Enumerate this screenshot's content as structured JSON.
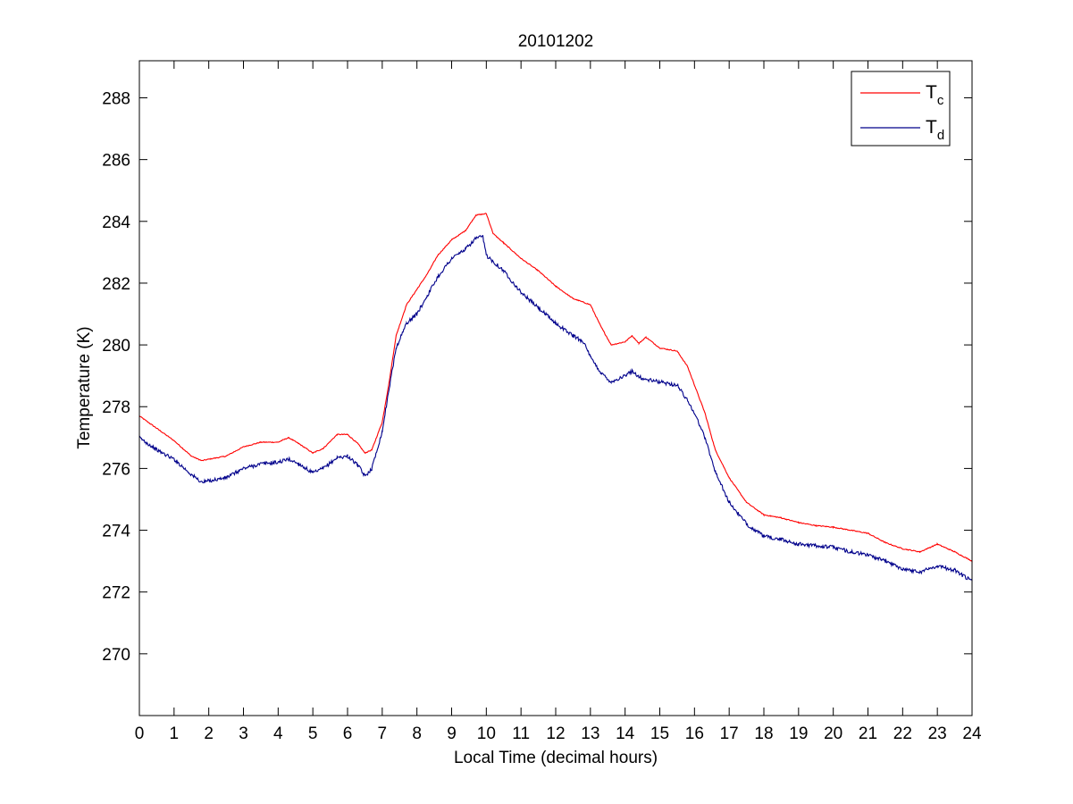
{
  "chart_data": {
    "type": "line",
    "title": "20101202",
    "xlabel": "Local Time (decimal hours)",
    "ylabel": "Temperature (K)",
    "xlim": [
      0,
      24
    ],
    "ylim": [
      268,
      289.2
    ],
    "xticks": [
      0,
      1,
      2,
      3,
      4,
      5,
      6,
      7,
      8,
      9,
      10,
      11,
      12,
      13,
      14,
      15,
      16,
      17,
      18,
      19,
      20,
      21,
      22,
      23,
      24
    ],
    "yticks": [
      270,
      272,
      274,
      276,
      278,
      280,
      282,
      284,
      286,
      288
    ],
    "grid": false,
    "legend_position": "top-right",
    "series": [
      {
        "name": "T",
        "name_subscript": "c",
        "color": "#ff0000",
        "points": [
          [
            0,
            277.7
          ],
          [
            0.5,
            277.3
          ],
          [
            1,
            276.9
          ],
          [
            1.5,
            276.4
          ],
          [
            1.8,
            276.25
          ],
          [
            2,
            276.3
          ],
          [
            2.5,
            276.4
          ],
          [
            3,
            276.7
          ],
          [
            3.5,
            276.85
          ],
          [
            4,
            276.85
          ],
          [
            4.3,
            277.0
          ],
          [
            4.6,
            276.8
          ],
          [
            5,
            276.5
          ],
          [
            5.3,
            276.65
          ],
          [
            5.7,
            277.1
          ],
          [
            6,
            277.1
          ],
          [
            6.3,
            276.8
          ],
          [
            6.5,
            276.5
          ],
          [
            6.7,
            276.6
          ],
          [
            7,
            277.5
          ],
          [
            7.2,
            278.8
          ],
          [
            7.4,
            280.3
          ],
          [
            7.7,
            281.3
          ],
          [
            8,
            281.8
          ],
          [
            8.3,
            282.3
          ],
          [
            8.6,
            282.9
          ],
          [
            9,
            283.4
          ],
          [
            9.4,
            283.7
          ],
          [
            9.7,
            284.2
          ],
          [
            10,
            284.25
          ],
          [
            10.2,
            283.6
          ],
          [
            10.5,
            283.3
          ],
          [
            11,
            282.8
          ],
          [
            11.5,
            282.4
          ],
          [
            12,
            281.9
          ],
          [
            12.5,
            281.5
          ],
          [
            13,
            281.3
          ],
          [
            13.3,
            280.6
          ],
          [
            13.6,
            280.0
          ],
          [
            14,
            280.1
          ],
          [
            14.2,
            280.3
          ],
          [
            14.4,
            280.05
          ],
          [
            14.6,
            280.25
          ],
          [
            15,
            279.9
          ],
          [
            15.5,
            279.8
          ],
          [
            15.8,
            279.3
          ],
          [
            16,
            278.7
          ],
          [
            16.3,
            277.8
          ],
          [
            16.6,
            276.6
          ],
          [
            17,
            275.7
          ],
          [
            17.5,
            274.9
          ],
          [
            18,
            274.5
          ],
          [
            18.5,
            274.4
          ],
          [
            19,
            274.25
          ],
          [
            19.5,
            274.15
          ],
          [
            20,
            274.1
          ],
          [
            20.5,
            274.0
          ],
          [
            21,
            273.9
          ],
          [
            21.5,
            273.6
          ],
          [
            22,
            273.4
          ],
          [
            22.5,
            273.3
          ],
          [
            23,
            273.55
          ],
          [
            23.5,
            273.3
          ],
          [
            24,
            273.0
          ]
        ]
      },
      {
        "name": "T",
        "name_subscript": "d",
        "color": "#00008b",
        "points": [
          [
            0,
            277.0
          ],
          [
            0.5,
            276.6
          ],
          [
            1,
            276.3
          ],
          [
            1.5,
            275.8
          ],
          [
            1.8,
            275.55
          ],
          [
            2,
            275.6
          ],
          [
            2.5,
            275.7
          ],
          [
            3,
            276.0
          ],
          [
            3.5,
            276.15
          ],
          [
            4,
            276.2
          ],
          [
            4.3,
            276.3
          ],
          [
            4.6,
            276.15
          ],
          [
            5,
            275.85
          ],
          [
            5.3,
            276.0
          ],
          [
            5.7,
            276.35
          ],
          [
            6,
            276.4
          ],
          [
            6.3,
            276.1
          ],
          [
            6.5,
            275.75
          ],
          [
            6.7,
            276.0
          ],
          [
            7,
            277.2
          ],
          [
            7.2,
            278.6
          ],
          [
            7.4,
            279.9
          ],
          [
            7.7,
            280.7
          ],
          [
            8,
            281.0
          ],
          [
            8.3,
            281.6
          ],
          [
            8.6,
            282.2
          ],
          [
            9,
            282.8
          ],
          [
            9.4,
            283.1
          ],
          [
            9.7,
            283.45
          ],
          [
            9.9,
            283.5
          ],
          [
            10,
            282.9
          ],
          [
            10.5,
            282.4
          ],
          [
            11,
            281.7
          ],
          [
            11.5,
            281.2
          ],
          [
            12,
            280.7
          ],
          [
            12.5,
            280.3
          ],
          [
            12.8,
            280.1
          ],
          [
            13,
            279.6
          ],
          [
            13.3,
            279.1
          ],
          [
            13.6,
            278.8
          ],
          [
            14,
            279.0
          ],
          [
            14.2,
            279.15
          ],
          [
            14.5,
            278.9
          ],
          [
            15,
            278.8
          ],
          [
            15.5,
            278.7
          ],
          [
            15.8,
            278.2
          ],
          [
            16,
            277.8
          ],
          [
            16.3,
            277.0
          ],
          [
            16.6,
            275.9
          ],
          [
            17,
            274.9
          ],
          [
            17.5,
            274.2
          ],
          [
            18,
            273.8
          ],
          [
            18.5,
            273.7
          ],
          [
            19,
            273.55
          ],
          [
            19.5,
            273.5
          ],
          [
            20,
            273.45
          ],
          [
            20.5,
            273.3
          ],
          [
            21,
            273.2
          ],
          [
            21.5,
            273.0
          ],
          [
            22,
            272.75
          ],
          [
            22.5,
            272.65
          ],
          [
            23,
            272.85
          ],
          [
            23.5,
            272.7
          ],
          [
            24,
            272.35
          ]
        ]
      }
    ]
  }
}
